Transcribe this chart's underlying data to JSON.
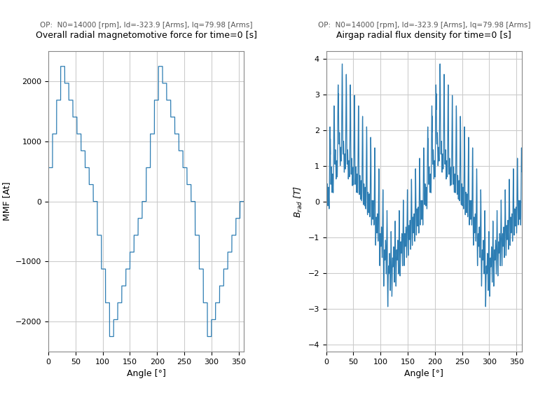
{
  "op_label": "OP:  N0=14000 [rpm], Id=-323.9 [Arms], Iq=79.98 [Arms]",
  "title_left": "Overall radial magnetomotive force for time=0 [s]",
  "title_right": "Airgap radial flux density for time=0 [s]",
  "xlabel": "Angle [°]",
  "ylabel_left": "MMF [At]",
  "ylabel_right": "$B_{rad}$ [T]",
  "ylim_left": [
    -2500,
    2500
  ],
  "ylim_right": [
    -4.2,
    4.2
  ],
  "xlim": [
    0,
    360
  ],
  "line_color": "#2d7db3",
  "bg_color": "#ffffff",
  "grid_color": "#cccccc",
  "num_slots": 48,
  "num_poles": 4
}
